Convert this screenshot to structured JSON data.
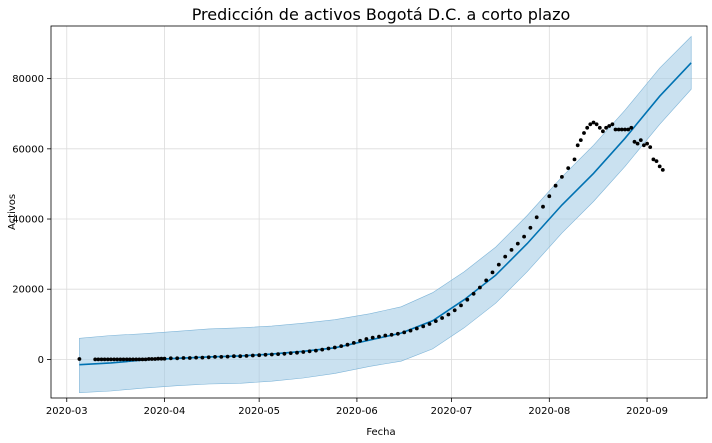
{
  "chart_data": {
    "type": "line",
    "title": "Predicción de activos Bogotá D.C. a corto plazo",
    "xlabel": "Fecha",
    "ylabel": "Activos",
    "x_ticks": [
      "2020-03",
      "2020-04",
      "2020-05",
      "2020-06",
      "2020-07",
      "2020-08",
      "2020-09"
    ],
    "y_ticks": [
      0,
      20000,
      40000,
      60000,
      80000
    ],
    "xlim": [
      "2020-02-25",
      "2020-09-20"
    ],
    "ylim": [
      -11000,
      95000
    ],
    "grid": true,
    "colors": {
      "forecast": "#0072B2",
      "band": "#9fc9e3",
      "observed": "#000000"
    },
    "series": [
      {
        "kind": "interval",
        "points": [
          {
            "x": "2020-03-05",
            "y": -1500,
            "lower": -9500,
            "upper": 6000
          },
          {
            "x": "2020-03-15",
            "y": -1000,
            "lower": -9000,
            "upper": 6800
          },
          {
            "x": "2020-03-25",
            "y": -200,
            "lower": -8200,
            "upper": 7300
          },
          {
            "x": "2020-04-05",
            "y": 300,
            "lower": -7500,
            "upper": 8000
          },
          {
            "x": "2020-04-15",
            "y": 700,
            "lower": -7000,
            "upper": 8700
          },
          {
            "x": "2020-04-25",
            "y": 1000,
            "lower": -6800,
            "upper": 9000
          },
          {
            "x": "2020-05-05",
            "y": 1500,
            "lower": -6200,
            "upper": 9500
          },
          {
            "x": "2020-05-15",
            "y": 2300,
            "lower": -5300,
            "upper": 10300
          },
          {
            "x": "2020-05-25",
            "y": 3300,
            "lower": -4000,
            "upper": 11300
          },
          {
            "x": "2020-06-05",
            "y": 5500,
            "lower": -2000,
            "upper": 13000
          },
          {
            "x": "2020-06-15",
            "y": 7500,
            "lower": -500,
            "upper": 15000
          },
          {
            "x": "2020-06-25",
            "y": 11000,
            "lower": 3000,
            "upper": 19000
          },
          {
            "x": "2020-07-05",
            "y": 17000,
            "lower": 9000,
            "upper": 25000
          },
          {
            "x": "2020-07-15",
            "y": 24000,
            "lower": 16000,
            "upper": 32000
          },
          {
            "x": "2020-07-25",
            "y": 33000,
            "lower": 25000,
            "upper": 41000
          },
          {
            "x": "2020-08-05",
            "y": 44000,
            "lower": 36000,
            "upper": 52000
          },
          {
            "x": "2020-08-15",
            "y": 53000,
            "lower": 45000,
            "upper": 61000
          },
          {
            "x": "2020-08-25",
            "y": 63000,
            "lower": 55000,
            "upper": 71000
          },
          {
            "x": "2020-09-05",
            "y": 75000,
            "lower": 67000,
            "upper": 83000
          },
          {
            "x": "2020-09-15",
            "y": 84500,
            "lower": 77000,
            "upper": 92000
          }
        ]
      },
      {
        "kind": "observed",
        "points": [
          {
            "x": "2020-03-05",
            "y": 100
          },
          {
            "x": "2020-03-10",
            "y": 0
          },
          {
            "x": "2020-03-11",
            "y": 0
          },
          {
            "x": "2020-03-12",
            "y": 0
          },
          {
            "x": "2020-03-13",
            "y": 0
          },
          {
            "x": "2020-03-14",
            "y": 0
          },
          {
            "x": "2020-03-15",
            "y": 0
          },
          {
            "x": "2020-03-16",
            "y": 0
          },
          {
            "x": "2020-03-17",
            "y": 0
          },
          {
            "x": "2020-03-18",
            "y": 0
          },
          {
            "x": "2020-03-19",
            "y": 0
          },
          {
            "x": "2020-03-20",
            "y": 0
          },
          {
            "x": "2020-03-21",
            "y": 0
          },
          {
            "x": "2020-03-22",
            "y": 0
          },
          {
            "x": "2020-03-23",
            "y": 0
          },
          {
            "x": "2020-03-24",
            "y": 0
          },
          {
            "x": "2020-03-25",
            "y": 0
          },
          {
            "x": "2020-03-26",
            "y": 0
          },
          {
            "x": "2020-03-27",
            "y": 100
          },
          {
            "x": "2020-03-28",
            "y": 100
          },
          {
            "x": "2020-03-29",
            "y": 100
          },
          {
            "x": "2020-03-30",
            "y": 200
          },
          {
            "x": "2020-03-31",
            "y": 200
          },
          {
            "x": "2020-04-01",
            "y": 200
          },
          {
            "x": "2020-04-03",
            "y": 300
          },
          {
            "x": "2020-04-05",
            "y": 300
          },
          {
            "x": "2020-04-07",
            "y": 400
          },
          {
            "x": "2020-04-09",
            "y": 400
          },
          {
            "x": "2020-04-11",
            "y": 500
          },
          {
            "x": "2020-04-13",
            "y": 500
          },
          {
            "x": "2020-04-15",
            "y": 600
          },
          {
            "x": "2020-04-17",
            "y": 700
          },
          {
            "x": "2020-04-19",
            "y": 700
          },
          {
            "x": "2020-04-21",
            "y": 800
          },
          {
            "x": "2020-04-23",
            "y": 900
          },
          {
            "x": "2020-04-25",
            "y": 900
          },
          {
            "x": "2020-04-27",
            "y": 1000
          },
          {
            "x": "2020-04-29",
            "y": 1100
          },
          {
            "x": "2020-05-01",
            "y": 1200
          },
          {
            "x": "2020-05-03",
            "y": 1300
          },
          {
            "x": "2020-05-05",
            "y": 1400
          },
          {
            "x": "2020-05-07",
            "y": 1500
          },
          {
            "x": "2020-05-09",
            "y": 1600
          },
          {
            "x": "2020-05-11",
            "y": 1800
          },
          {
            "x": "2020-05-13",
            "y": 1900
          },
          {
            "x": "2020-05-15",
            "y": 2100
          },
          {
            "x": "2020-05-17",
            "y": 2300
          },
          {
            "x": "2020-05-19",
            "y": 2500
          },
          {
            "x": "2020-05-21",
            "y": 2800
          },
          {
            "x": "2020-05-23",
            "y": 3100
          },
          {
            "x": "2020-05-25",
            "y": 3400
          },
          {
            "x": "2020-05-27",
            "y": 3800
          },
          {
            "x": "2020-05-29",
            "y": 4200
          },
          {
            "x": "2020-05-31",
            "y": 4700
          },
          {
            "x": "2020-06-02",
            "y": 5300
          },
          {
            "x": "2020-06-04",
            "y": 5800
          },
          {
            "x": "2020-06-06",
            "y": 6200
          },
          {
            "x": "2020-06-08",
            "y": 6500
          },
          {
            "x": "2020-06-10",
            "y": 6800
          },
          {
            "x": "2020-06-12",
            "y": 7000
          },
          {
            "x": "2020-06-14",
            "y": 7300
          },
          {
            "x": "2020-06-16",
            "y": 7700
          },
          {
            "x": "2020-06-18",
            "y": 8200
          },
          {
            "x": "2020-06-20",
            "y": 8800
          },
          {
            "x": "2020-06-22",
            "y": 9400
          },
          {
            "x": "2020-06-24",
            "y": 10100
          },
          {
            "x": "2020-06-26",
            "y": 10900
          },
          {
            "x": "2020-06-28",
            "y": 11800
          },
          {
            "x": "2020-06-30",
            "y": 12800
          },
          {
            "x": "2020-07-02",
            "y": 14000
          },
          {
            "x": "2020-07-04",
            "y": 15400
          },
          {
            "x": "2020-07-06",
            "y": 17000
          },
          {
            "x": "2020-07-08",
            "y": 18700
          },
          {
            "x": "2020-07-10",
            "y": 20500
          },
          {
            "x": "2020-07-12",
            "y": 22500
          },
          {
            "x": "2020-07-14",
            "y": 24800
          },
          {
            "x": "2020-07-16",
            "y": 27000
          },
          {
            "x": "2020-07-18",
            "y": 29300
          },
          {
            "x": "2020-07-20",
            "y": 31200
          },
          {
            "x": "2020-07-22",
            "y": 33000
          },
          {
            "x": "2020-07-24",
            "y": 35000
          },
          {
            "x": "2020-07-26",
            "y": 37500
          },
          {
            "x": "2020-07-28",
            "y": 40500
          },
          {
            "x": "2020-07-30",
            "y": 43500
          },
          {
            "x": "2020-08-01",
            "y": 46500
          },
          {
            "x": "2020-08-03",
            "y": 49500
          },
          {
            "x": "2020-08-05",
            "y": 52000
          },
          {
            "x": "2020-08-07",
            "y": 54500
          },
          {
            "x": "2020-08-09",
            "y": 57000
          },
          {
            "x": "2020-08-10",
            "y": 61000
          },
          {
            "x": "2020-08-11",
            "y": 62500
          },
          {
            "x": "2020-08-12",
            "y": 64500
          },
          {
            "x": "2020-08-13",
            "y": 66000
          },
          {
            "x": "2020-08-14",
            "y": 67000
          },
          {
            "x": "2020-08-15",
            "y": 67500
          },
          {
            "x": "2020-08-16",
            "y": 67000
          },
          {
            "x": "2020-08-17",
            "y": 66000
          },
          {
            "x": "2020-08-18",
            "y": 65000
          },
          {
            "x": "2020-08-19",
            "y": 66000
          },
          {
            "x": "2020-08-20",
            "y": 66500
          },
          {
            "x": "2020-08-21",
            "y": 67000
          },
          {
            "x": "2020-08-22",
            "y": 65500
          },
          {
            "x": "2020-08-23",
            "y": 65500
          },
          {
            "x": "2020-08-24",
            "y": 65500
          },
          {
            "x": "2020-08-25",
            "y": 65500
          },
          {
            "x": "2020-08-26",
            "y": 65500
          },
          {
            "x": "2020-08-27",
            "y": 66000
          },
          {
            "x": "2020-08-28",
            "y": 62000
          },
          {
            "x": "2020-08-29",
            "y": 61500
          },
          {
            "x": "2020-08-30",
            "y": 62500
          },
          {
            "x": "2020-08-31",
            "y": 61000
          },
          {
            "x": "2020-09-01",
            "y": 61500
          },
          {
            "x": "2020-09-02",
            "y": 60500
          },
          {
            "x": "2020-09-03",
            "y": 57000
          },
          {
            "x": "2020-09-04",
            "y": 56500
          },
          {
            "x": "2020-09-05",
            "y": 55000
          },
          {
            "x": "2020-09-06",
            "y": 54000
          }
        ]
      }
    ]
  }
}
